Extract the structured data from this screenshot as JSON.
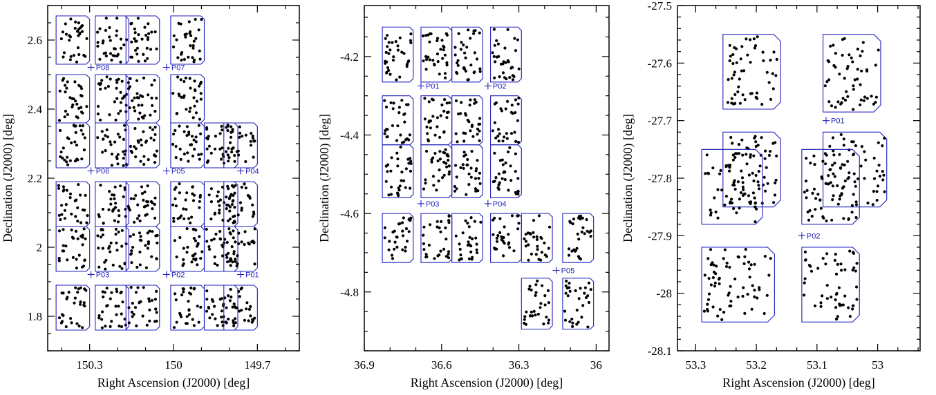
{
  "chart_data": [
    {
      "type": "scatter",
      "xlabel": "Right Ascension (J2000) [deg]",
      "ylabel": "Declination (J2000) [deg]",
      "xlim": [
        150.45,
        149.55
      ],
      "ylim": [
        1.7,
        2.7
      ],
      "x_ticks": [
        150.3,
        150,
        149.7
      ],
      "y_ticks": [
        1.8,
        2,
        2.2,
        2.4,
        2.6
      ],
      "pointings": [
        {
          "name": "P08",
          "ra": 150.295,
          "dec": 2.521
        },
        {
          "name": "P07",
          "ra": 150.025,
          "dec": 2.521
        },
        {
          "name": "P06",
          "ra": 150.295,
          "dec": 2.221
        },
        {
          "name": "P05",
          "ra": 150.025,
          "dec": 2.221
        },
        {
          "name": "P04",
          "ra": 149.76,
          "dec": 2.221
        },
        {
          "name": "P03",
          "ra": 150.295,
          "dec": 1.921
        },
        {
          "name": "P02",
          "ra": 150.025,
          "dec": 1.921
        },
        {
          "name": "P01",
          "ra": 149.76,
          "dec": 1.921
        }
      ],
      "fields": [
        [
          150.42,
          150.3,
          2.53,
          2.67
        ],
        [
          150.28,
          150.16,
          2.53,
          2.67
        ],
        [
          150.17,
          150.05,
          2.53,
          2.67
        ],
        [
          150.01,
          149.89,
          2.53,
          2.67
        ],
        [
          150.42,
          150.3,
          2.36,
          2.5
        ],
        [
          150.28,
          150.16,
          2.36,
          2.5
        ],
        [
          150.17,
          150.05,
          2.36,
          2.5
        ],
        [
          150.01,
          149.89,
          2.36,
          2.5
        ],
        [
          150.42,
          150.3,
          2.23,
          2.36
        ],
        [
          150.28,
          150.16,
          2.23,
          2.36
        ],
        [
          150.17,
          150.05,
          2.23,
          2.36
        ],
        [
          150.01,
          149.89,
          2.23,
          2.36
        ],
        [
          149.89,
          149.77,
          2.23,
          2.36
        ],
        [
          149.82,
          149.7,
          2.23,
          2.36
        ],
        [
          150.42,
          150.3,
          2.06,
          2.19
        ],
        [
          150.28,
          150.16,
          2.06,
          2.19
        ],
        [
          150.17,
          150.05,
          2.06,
          2.19
        ],
        [
          150.01,
          149.89,
          2.06,
          2.19
        ],
        [
          149.89,
          149.77,
          2.06,
          2.19
        ],
        [
          149.82,
          149.7,
          2.06,
          2.19
        ],
        [
          150.42,
          150.3,
          1.93,
          2.06
        ],
        [
          150.28,
          150.16,
          1.93,
          2.06
        ],
        [
          150.17,
          150.05,
          1.93,
          2.06
        ],
        [
          150.01,
          149.89,
          1.93,
          2.06
        ],
        [
          149.89,
          149.77,
          1.93,
          2.06
        ],
        [
          149.82,
          149.7,
          1.93,
          2.06
        ],
        [
          150.42,
          150.3,
          1.76,
          1.89
        ],
        [
          150.28,
          150.16,
          1.76,
          1.89
        ],
        [
          150.17,
          150.05,
          1.76,
          1.89
        ],
        [
          150.01,
          149.89,
          1.76,
          1.89
        ],
        [
          149.89,
          149.77,
          1.76,
          1.89
        ],
        [
          149.82,
          149.7,
          1.76,
          1.89
        ]
      ]
    },
    {
      "type": "scatter",
      "xlabel": "Right Ascension (J2000) [deg]",
      "ylabel": "Declination (J2000) [deg]",
      "xlim": [
        36.9,
        35.95
      ],
      "ylim": [
        -4.95,
        -4.07
      ],
      "x_ticks": [
        36.9,
        36.6,
        36.3,
        36
      ],
      "y_ticks": [
        -4.2,
        -4.4,
        -4.6,
        -4.8
      ],
      "pointings": [
        {
          "name": "P01",
          "ra": 36.68,
          "dec": -4.275
        },
        {
          "name": "P02",
          "ra": 36.42,
          "dec": -4.275
        },
        {
          "name": "P03",
          "ra": 36.68,
          "dec": -4.575
        },
        {
          "name": "P04",
          "ra": 36.42,
          "dec": -4.575
        },
        {
          "name": "P05",
          "ra": 36.155,
          "dec": -4.745
        }
      ],
      "fields": [
        [
          36.83,
          36.71,
          -4.265,
          -4.125
        ],
        [
          36.68,
          36.56,
          -4.265,
          -4.125
        ],
        [
          36.56,
          36.44,
          -4.265,
          -4.125
        ],
        [
          36.41,
          36.29,
          -4.265,
          -4.125
        ],
        [
          36.83,
          36.71,
          -4.425,
          -4.3
        ],
        [
          36.68,
          36.56,
          -4.425,
          -4.3
        ],
        [
          36.56,
          36.44,
          -4.425,
          -4.3
        ],
        [
          36.41,
          36.29,
          -4.425,
          -4.3
        ],
        [
          36.83,
          36.71,
          -4.56,
          -4.425
        ],
        [
          36.68,
          36.56,
          -4.56,
          -4.425
        ],
        [
          36.56,
          36.44,
          -4.56,
          -4.425
        ],
        [
          36.41,
          36.29,
          -4.56,
          -4.425
        ],
        [
          36.83,
          36.71,
          -4.725,
          -4.6
        ],
        [
          36.68,
          36.56,
          -4.725,
          -4.6
        ],
        [
          36.56,
          36.44,
          -4.725,
          -4.6
        ],
        [
          36.41,
          36.29,
          -4.725,
          -4.6
        ],
        [
          36.29,
          36.17,
          -4.725,
          -4.6
        ],
        [
          36.13,
          36.01,
          -4.725,
          -4.6
        ],
        [
          36.29,
          36.17,
          -4.895,
          -4.765
        ],
        [
          36.13,
          36.01,
          -4.895,
          -4.765
        ]
      ]
    },
    {
      "type": "scatter",
      "xlabel": "Right Ascension (J2000) [deg]",
      "ylabel": "Declination (J2000) [deg]",
      "xlim": [
        53.33,
        52.93
      ],
      "ylim": [
        -28.1,
        -27.5
      ],
      "x_ticks": [
        53.3,
        53.2,
        53.1,
        53
      ],
      "y_ticks": [
        -27.5,
        -27.6,
        -27.7,
        -27.8,
        -27.9,
        -28,
        -28.1
      ],
      "pointings": [
        {
          "name": "P01",
          "ra": 53.085,
          "dec": -27.7
        },
        {
          "name": "P02",
          "ra": 53.125,
          "dec": -27.9
        }
      ],
      "fields": [
        [
          53.255,
          53.16,
          -27.68,
          -27.55
        ],
        [
          53.09,
          52.995,
          -27.685,
          -27.55
        ],
        [
          53.255,
          53.16,
          -27.85,
          -27.72
        ],
        [
          53.09,
          52.985,
          -27.85,
          -27.72
        ],
        [
          53.29,
          53.19,
          -27.88,
          -27.75
        ],
        [
          53.125,
          53.03,
          -27.88,
          -27.75
        ],
        [
          53.29,
          53.17,
          -28.05,
          -27.92
        ],
        [
          53.125,
          53.03,
          -28.05,
          -27.92
        ]
      ]
    }
  ]
}
